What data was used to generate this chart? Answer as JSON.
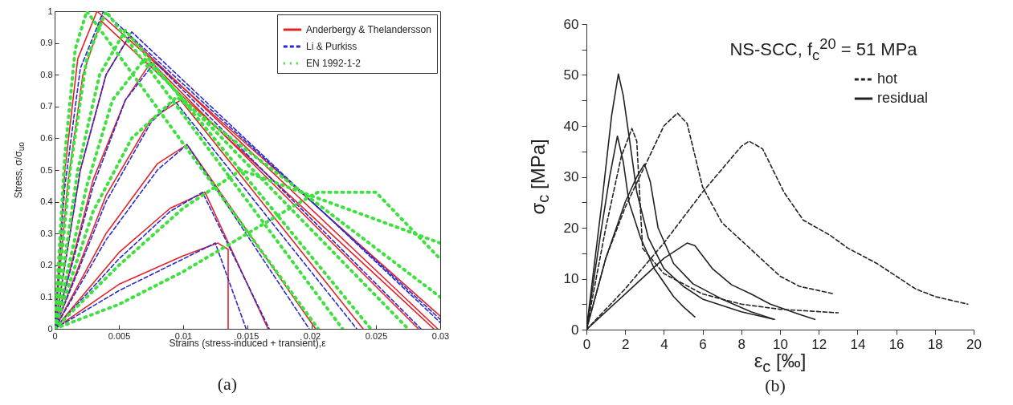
{
  "chart_data": [
    {
      "type": "line",
      "xlabel": "Strains (stress-induced + transient),ε",
      "ylabel": "Stress, σ/σ$_{uo}$",
      "annotations": [
        "(a)"
      ],
      "legend": "top right",
      "xlim": [
        0,
        0.03
      ],
      "xticks": [
        0,
        0.005,
        0.01,
        0.015,
        0.02,
        0.025,
        0.03
      ],
      "ylim": [
        0,
        1
      ],
      "yticks": [
        0,
        0.1,
        0.2,
        0.3,
        0.4,
        0.5,
        0.6,
        0.7,
        0.8,
        0.9,
        1
      ],
      "series": [
        {
          "name": "Anderbergy & Thelandersson",
          "color": "#e3232a",
          "line_style": "solid",
          "x": [
            0,
            0.0008,
            0.0018,
            0.0033,
            0.03
          ],
          "values": [
            0,
            0.5,
            0.85,
            1.0,
            0.04
          ]
        },
        {
          "color": "#e3232a",
          "line_style": "solid",
          "x": [
            0,
            0.001,
            0.0022,
            0.0036,
            0.0295
          ],
          "values": [
            0,
            0.45,
            0.8,
            0.97,
            0
          ]
        },
        {
          "color": "#e3232a",
          "line_style": "solid",
          "x": [
            0,
            0.002,
            0.004,
            0.0058,
            0.0298
          ],
          "values": [
            0,
            0.5,
            0.8,
            0.92,
            0
          ]
        },
        {
          "color": "#e3232a",
          "line_style": "solid",
          "x": [
            0,
            0.003,
            0.0055,
            0.0075,
            0.0283
          ],
          "values": [
            0,
            0.47,
            0.72,
            0.84,
            0
          ]
        },
        {
          "color": "#e3232a",
          "line_style": "solid",
          "x": [
            0,
            0.004,
            0.0075,
            0.0098,
            0.024
          ],
          "values": [
            0,
            0.42,
            0.66,
            0.72,
            0
          ]
        },
        {
          "color": "#e3232a",
          "line_style": "solid",
          "x": [
            0,
            0.004,
            0.008,
            0.0103,
            0.0203
          ],
          "values": [
            0,
            0.3,
            0.52,
            0.58,
            0
          ]
        },
        {
          "color": "#e3232a",
          "line_style": "solid",
          "x": [
            0,
            0.005,
            0.009,
            0.0117,
            0.0166
          ],
          "values": [
            0,
            0.24,
            0.38,
            0.43,
            0
          ]
        },
        {
          "color": "#e3232a",
          "line_style": "solid",
          "x": [
            0,
            0.005,
            0.01,
            0.0127,
            0.0135,
            0.0135
          ],
          "values": [
            0,
            0.14,
            0.23,
            0.27,
            0.25,
            0
          ]
        },
        {
          "name": "Li & Purkiss",
          "color": "#2a2acf",
          "line_style": "dashed",
          "x": [
            0,
            0.0008,
            0.002,
            0.0038,
            0.03
          ],
          "values": [
            0,
            0.45,
            0.82,
            1.0,
            0.03
          ]
        },
        {
          "color": "#2a2acf",
          "line_style": "dashed",
          "x": [
            0,
            0.002,
            0.004,
            0.006,
            0.03
          ],
          "values": [
            0,
            0.5,
            0.8,
            0.935,
            0.02
          ]
        },
        {
          "color": "#2a2acf",
          "line_style": "dashed",
          "x": [
            0,
            0.003,
            0.0055,
            0.0078,
            0.0285
          ],
          "values": [
            0,
            0.45,
            0.72,
            0.84,
            0
          ]
        },
        {
          "color": "#2a2acf",
          "line_style": "dashed",
          "x": [
            0,
            0.004,
            0.0075,
            0.0093,
            0.0235
          ],
          "values": [
            0,
            0.4,
            0.65,
            0.72,
            0
          ]
        },
        {
          "color": "#2a2acf",
          "line_style": "dashed",
          "x": [
            0,
            0.004,
            0.008,
            0.0103,
            0.0198
          ],
          "values": [
            0,
            0.28,
            0.5,
            0.58,
            0
          ]
        },
        {
          "color": "#2a2acf",
          "line_style": "dashed",
          "x": [
            0,
            0.005,
            0.009,
            0.0115,
            0.0167
          ],
          "values": [
            0,
            0.22,
            0.37,
            0.43,
            0
          ]
        },
        {
          "color": "#2a2acf",
          "line_style": "dashed",
          "x": [
            0,
            0.005,
            0.01,
            0.0125,
            0.0149
          ],
          "values": [
            0,
            0.12,
            0.22,
            0.27,
            0
          ]
        },
        {
          "name": "EN 1992-1-2",
          "color": "#3fe03f",
          "line_style": "dotted",
          "x": [
            0,
            0.0008,
            0.0016,
            0.0025,
            0.0205
          ],
          "values": [
            0,
            0.55,
            0.88,
            1.0,
            0
          ]
        },
        {
          "color": "#3fe03f",
          "line_style": "dotted",
          "x": [
            0,
            0.0012,
            0.0025,
            0.004,
            0.0224
          ],
          "values": [
            0,
            0.5,
            0.85,
            1.0,
            0
          ]
        },
        {
          "color": "#3fe03f",
          "line_style": "dotted",
          "x": [
            0,
            0.0018,
            0.0035,
            0.0055,
            0.0246
          ],
          "values": [
            0,
            0.5,
            0.8,
            0.94,
            0
          ]
        },
        {
          "color": "#3fe03f",
          "line_style": "dotted",
          "x": [
            0,
            0.0025,
            0.0045,
            0.007,
            0.0275
          ],
          "values": [
            0,
            0.45,
            0.72,
            0.85,
            0
          ]
        },
        {
          "color": "#3fe03f",
          "line_style": "dotted",
          "x": [
            0,
            0.003,
            0.006,
            0.0095,
            0.03
          ],
          "values": [
            0,
            0.37,
            0.6,
            0.73,
            0.1
          ]
        },
        {
          "color": "#3fe03f",
          "line_style": "dotted",
          "x": [
            0,
            0.005,
            0.01,
            0.0145,
            0.03
          ],
          "values": [
            0,
            0.2,
            0.38,
            0.5,
            0.27
          ]
        },
        {
          "color": "#3fe03f",
          "line_style": "dotted",
          "x": [
            0,
            0.005,
            0.01,
            0.015,
            0.02,
            0.0205,
            0.025,
            0.03
          ],
          "values": [
            0,
            0.077,
            0.18,
            0.3,
            0.42,
            0.43,
            0.43,
            0.22
          ]
        }
      ]
    },
    {
      "type": "line",
      "xlabel": "ε$_{c}$ [‰]",
      "ylabel": "σ$_{c}$ [MPa]",
      "annotations": [
        "NS-SCC, f$_{c}$$^{20}$ = 51 MPa",
        "(b)"
      ],
      "legend": "top right",
      "xlim": [
        0,
        20
      ],
      "xticks": [
        0,
        2,
        4,
        6,
        8,
        10,
        12,
        14,
        16,
        18,
        20
      ],
      "ylim": [
        0,
        60
      ],
      "yticks": [
        0,
        {
          "value": 5,
          "label": null
        },
        10,
        {
          "value": 15,
          "label": null
        },
        20,
        {
          "value": 25,
          "label": null
        },
        30,
        {
          "value": 35,
          "label": null
        },
        40,
        {
          "value": 45,
          "label": null
        },
        50,
        {
          "value": 55,
          "label": null
        },
        60
      ],
      "series": [
        {
          "name": "hot",
          "color": "#222222",
          "line_style": "dashed",
          "x": [
            0,
            1,
            1.8,
            2.35,
            2.6,
            2.9,
            4,
            6,
            8,
            10,
            13
          ],
          "values": [
            0,
            20,
            34,
            39.5,
            37,
            16,
            11,
            7,
            5,
            4,
            3.3
          ]
        },
        {
          "color": "#222222",
          "line_style": "dashed",
          "x": [
            0,
            1,
            2,
            3,
            4,
            4.7,
            5.2,
            6,
            7,
            8,
            9,
            10,
            11,
            12.8
          ],
          "values": [
            0,
            14,
            24,
            32,
            40,
            42.5,
            40.5,
            28,
            21,
            17.5,
            14,
            10.5,
            8.5,
            7
          ]
        },
        {
          "color": "#222222",
          "line_style": "dashed",
          "x": [
            0,
            2,
            4,
            6,
            8,
            8.4,
            9.1,
            10.2,
            11.2,
            12.6,
            13.5,
            15,
            17,
            18,
            19.7
          ],
          "values": [
            0,
            8,
            17,
            27,
            36,
            37,
            35.5,
            27,
            21.5,
            18.5,
            16,
            13,
            8,
            6.5,
            5
          ]
        },
        {
          "name": "residual",
          "color": "#222222",
          "line_style": "solid",
          "x": [
            0,
            0.8,
            1.3,
            1.65,
            1.9,
            2.2,
            2.6,
            3.2,
            4,
            5,
            6,
            8,
            9.7
          ],
          "values": [
            0,
            25,
            42,
            50.2,
            46,
            38,
            27,
            18,
            12,
            8.5,
            6,
            3.5,
            2
          ]
        },
        {
          "color": "#222222",
          "line_style": "solid",
          "x": [
            0,
            0.7,
            1.2,
            1.6,
            1.9,
            2.2,
            2.8,
            3.5,
            4.5,
            5,
            5.6
          ],
          "values": [
            0,
            18,
            30,
            38,
            33,
            25,
            18,
            12,
            6.5,
            4.5,
            2.5
          ]
        },
        {
          "color": "#222222",
          "line_style": "solid",
          "x": [
            0,
            1,
            2,
            2.6,
            3,
            3.3,
            3.7,
            4.5,
            5.5,
            7,
            8.5,
            9.7
          ],
          "values": [
            0,
            14,
            25,
            30,
            32.5,
            29,
            20,
            13,
            9,
            6,
            3.5,
            2
          ]
        },
        {
          "color": "#222222",
          "line_style": "solid",
          "x": [
            0,
            2,
            4,
            5.2,
            5.6,
            6.5,
            7.5,
            8.5,
            9.5,
            11,
            11.8
          ],
          "values": [
            0,
            7,
            14,
            17,
            16.5,
            12,
            8.8,
            7,
            5,
            3,
            2
          ]
        }
      ]
    }
  ]
}
